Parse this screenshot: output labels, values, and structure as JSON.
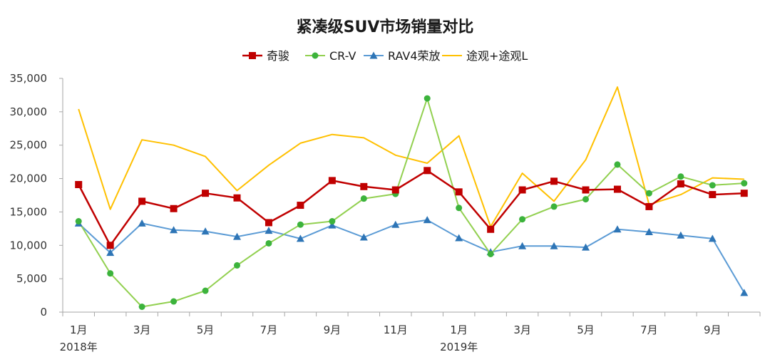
{
  "chart_data": {
    "type": "line",
    "title": "紧凑级SUV市场销量对比",
    "xlabel": "",
    "ylabel": "",
    "ylim": [
      0,
      35000
    ],
    "yticks": [
      0,
      5000,
      10000,
      15000,
      20000,
      25000,
      30000,
      35000
    ],
    "ytick_labels": [
      "0",
      "5,000",
      "10,000",
      "15,000",
      "20,000",
      "25,000",
      "30,000",
      "35,000"
    ],
    "months": [
      "2018-01",
      "2018-02",
      "2018-03",
      "2018-04",
      "2018-05",
      "2018-06",
      "2018-07",
      "2018-08",
      "2018-09",
      "2018-10",
      "2018-11",
      "2018-12",
      "2019-01",
      "2019-02",
      "2019-03",
      "2019-04",
      "2019-05",
      "2019-06",
      "2019-07",
      "2019-08",
      "2019-09",
      "2019-10"
    ],
    "xtick_labels": [
      "1月",
      "",
      "3月",
      "",
      "5月",
      "",
      "7月",
      "",
      "9月",
      "",
      "11月",
      "",
      "1月",
      "",
      "3月",
      "",
      "5月",
      "",
      "7月",
      "",
      "9月",
      ""
    ],
    "year_labels": [
      {
        "month": "2018-01",
        "text": "2018年"
      },
      {
        "month": "2019-01",
        "text": "2019年"
      }
    ],
    "legend_position": "top",
    "grid": false,
    "series": [
      {
        "name": "奇骏",
        "color": "#c00000",
        "marker": "square",
        "values": [
          19100,
          10000,
          16600,
          15500,
          17800,
          17100,
          13400,
          16000,
          19700,
          18800,
          18300,
          21200,
          18000,
          12400,
          18300,
          19600,
          18300,
          18400,
          15800,
          19200,
          17600,
          17800
        ]
      },
      {
        "name": "CR-V",
        "color": "#92d050",
        "marker": "circle",
        "values": [
          13600,
          5800,
          800,
          1600,
          3200,
          7000,
          10300,
          13100,
          13600,
          17000,
          17700,
          32000,
          15600,
          8700,
          13900,
          15800,
          16900,
          22100,
          17800,
          20300,
          19000,
          19300
        ]
      },
      {
        "name": "RAV4荣放",
        "color": "#5b9bd5",
        "marker": "triangle",
        "values": [
          13300,
          8900,
          13300,
          12300,
          12100,
          11300,
          12200,
          11000,
          13000,
          11200,
          13100,
          13800,
          11100,
          9000,
          9900,
          9900,
          9700,
          12400,
          12000,
          11500,
          11000,
          2900
        ]
      },
      {
        "name": "途观+途观L",
        "color": "#ffc000",
        "marker": "none",
        "values": [
          30400,
          15400,
          25800,
          25000,
          23300,
          18200,
          22000,
          25300,
          26600,
          26100,
          23500,
          22300,
          26400,
          12800,
          20800,
          16600,
          22800,
          33700,
          16100,
          17600,
          20100,
          19900
        ]
      }
    ]
  }
}
